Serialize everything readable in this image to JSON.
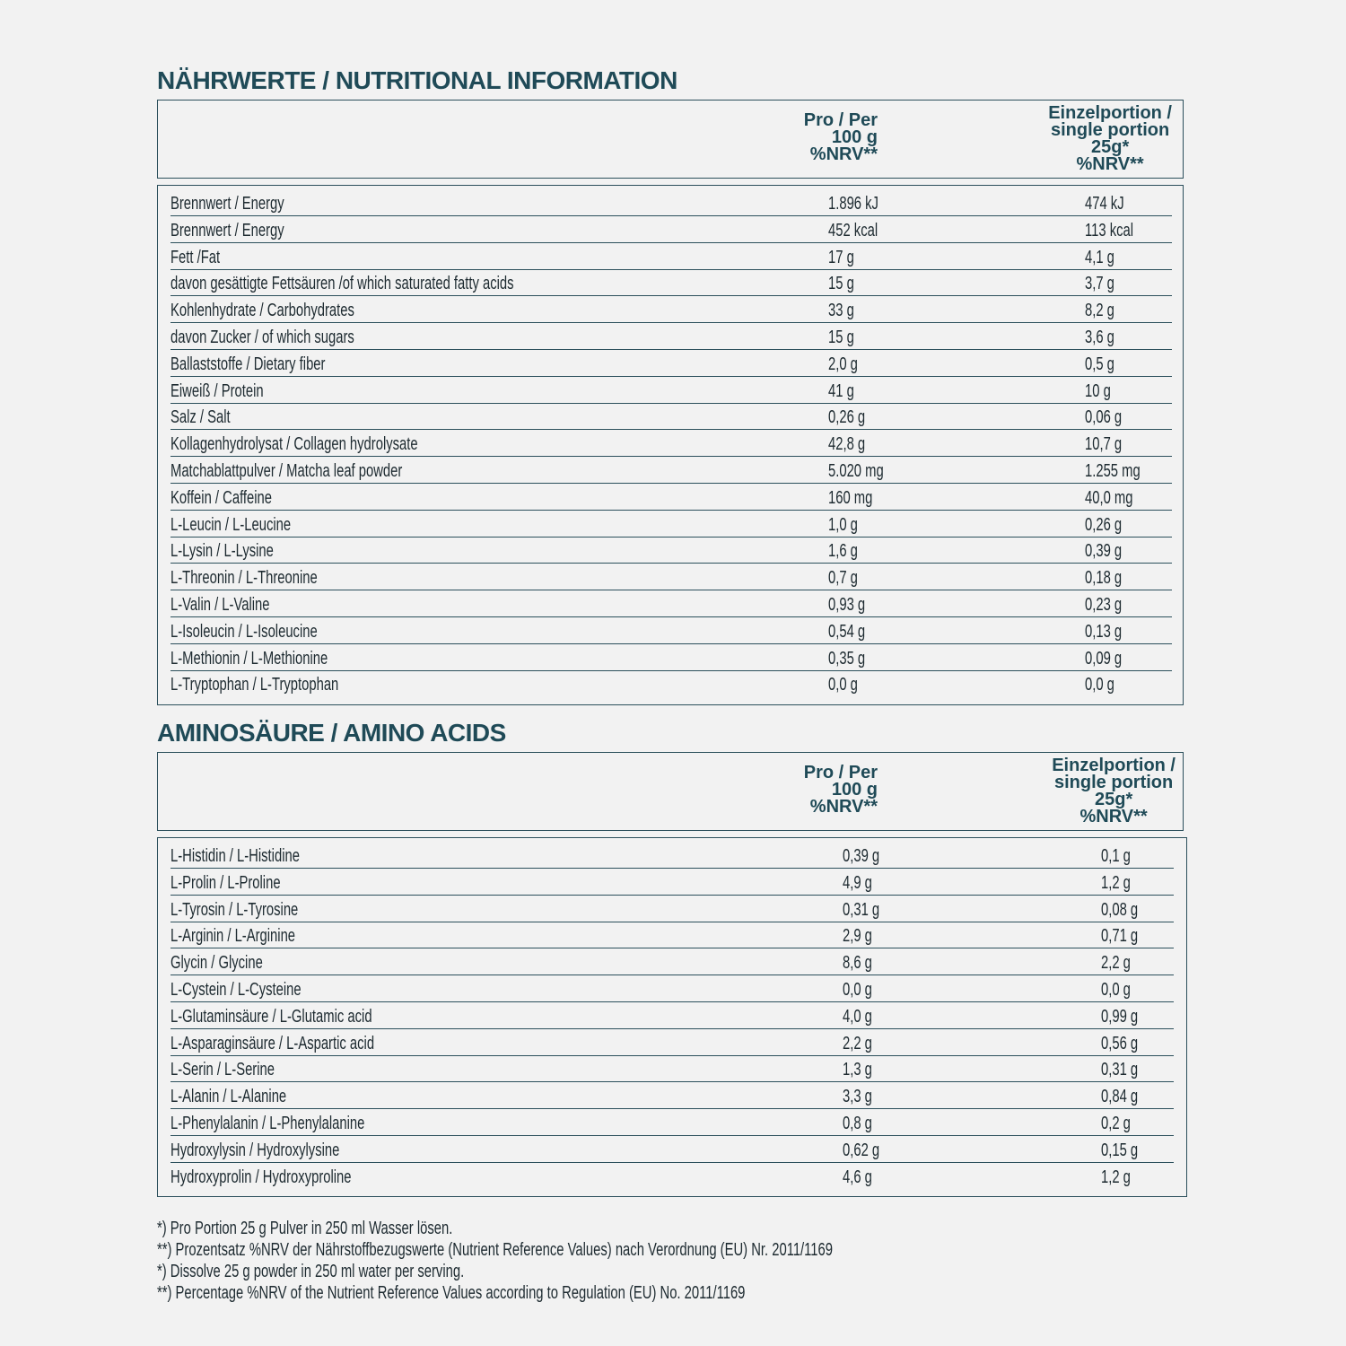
{
  "nutrition": {
    "title": "NÄHRWERTE / NUTRITIONAL INFORMATION",
    "header": {
      "per100": [
        "Pro / Per",
        "100 g",
        "%NRV**"
      ],
      "portion": [
        "Einzelportion /",
        "single portion",
        "25g*",
        "%NRV**"
      ]
    },
    "rows": [
      [
        "Brennwert / Energy",
        "1.896 kJ",
        "474 kJ"
      ],
      [
        "Brennwert / Energy",
        "452 kcal",
        "113 kcal"
      ],
      [
        "Fett /Fat",
        "17 g",
        "4,1 g"
      ],
      [
        "davon gesättigte Fettsäuren /of which saturated fatty acids",
        "15 g",
        "3,7 g"
      ],
      [
        "Kohlenhydrate / Carbohydrates",
        "33 g",
        "8,2 g"
      ],
      [
        "davon Zucker / of which sugars",
        "15 g",
        "3,6 g"
      ],
      [
        "Ballaststoffe  / Dietary fiber",
        "2,0 g",
        "0,5 g"
      ],
      [
        "Eiweiß / Protein",
        "41 g",
        "10 g"
      ],
      [
        "Salz / Salt",
        "0,26 g",
        "0,06 g"
      ],
      [
        "Kollagenhydrolysat / Collagen hydrolysate",
        "42,8 g",
        "10,7 g"
      ],
      [
        "Matchablattpulver / Matcha leaf powder",
        "5.020 mg",
        "1.255 mg"
      ],
      [
        "Koffein / Caffeine",
        "160 mg",
        "40,0 mg"
      ],
      [
        "L-Leucin / L-Leucine",
        "1,0 g",
        "0,26 g"
      ],
      [
        "L-Lysin / L-Lysine",
        "1,6 g",
        "0,39 g"
      ],
      [
        "L-Threonin / L-Threonine",
        "0,7 g",
        "0,18 g"
      ],
      [
        "L-Valin / L-Valine",
        "0,93 g",
        "0,23 g"
      ],
      [
        "L-Isoleucin / L-Isoleucine",
        "0,54 g",
        "0,13 g"
      ],
      [
        "L-Methionin / L-Methionine",
        "0,35 g",
        "0,09 g"
      ],
      [
        "L-Tryptophan / L-Tryptophan",
        "0,0 g",
        "0,0 g"
      ]
    ]
  },
  "amino": {
    "title": "AMINOSÄURE / AMINO ACIDS",
    "header": {
      "per100": [
        "Pro / Per",
        "100 g",
        "%NRV**"
      ],
      "portion": [
        "Einzelportion /",
        "single portion",
        "25g*",
        "%NRV**"
      ]
    },
    "rows": [
      [
        "L-Histidin / L-Histidine",
        "0,39 g",
        "0,1 g"
      ],
      [
        "L-Prolin / L-Proline",
        "4,9 g",
        "1,2 g"
      ],
      [
        "L-Tyrosin / L-Tyrosine",
        "0,31 g",
        "0,08 g"
      ],
      [
        "L-Arginin / L-Arginine",
        "2,9 g",
        "0,71 g"
      ],
      [
        "Glycin / Glycine",
        "8,6 g",
        "2,2 g"
      ],
      [
        "L-Cystein / L-Cysteine",
        "0,0 g",
        "0,0 g"
      ],
      [
        "L-Glutaminsäure / L-Glutamic acid",
        "4,0 g",
        "0,99 g"
      ],
      [
        "L-Asparaginsäure / L-Aspartic acid",
        "2,2 g",
        "0,56 g"
      ],
      [
        "L-Serin / L-Serine",
        "1,3 g",
        "0,31 g"
      ],
      [
        "L-Alanin / L-Alanine",
        "3,3 g",
        "0,84 g"
      ],
      [
        "L-Phenylalanin / L-Phenylalanine",
        "0,8 g",
        "0,2 g"
      ],
      [
        "Hydroxylysin / Hydroxylysine",
        "0,62 g",
        "0,15 g"
      ],
      [
        "Hydroxyprolin / Hydroxyproline",
        "4,6 g",
        "1,2 g"
      ]
    ]
  },
  "footnotes": [
    " *) Pro Portion 25 g Pulver in 250 ml Wasser lösen.",
    "**) Prozentsatz %NRV der Nährstoffbezugswerte (Nutrient Reference Values) nach Verordnung (EU) Nr. 2011/1169",
    "*) Dissolve 25 g powder in 250 ml water per serving.",
    "**) Percentage %NRV of the Nutrient Reference Values according to Regulation (EU) No. 2011/1169"
  ],
  "colors": {
    "heading": "#1f4a57",
    "border": "#2b4f5b",
    "background": "#f2f2f2"
  }
}
